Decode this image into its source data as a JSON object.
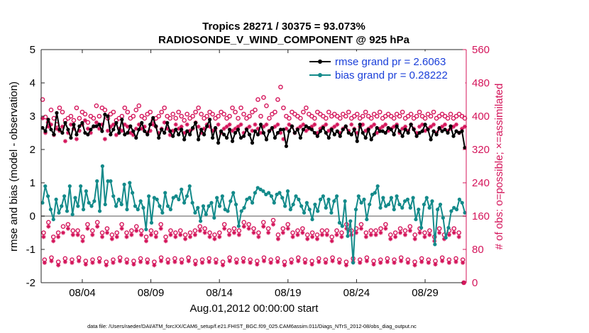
{
  "chart_data": {
    "type": "line",
    "title": "Tropics 28271 / 30375 = 93.073%",
    "subtitle": "RADIOSONDE_V_WIND_COMPONENT @ 925 hPa",
    "xlabel": "Aug.01,2012 00:00:00 start",
    "ylabel_left": "rmse and bias (model - observation)",
    "ylabel_right": "# of obs: o=possible; ×=assimilated",
    "footer": "data file: /Users/raeder/DAI/ATM_forcXX/CAM6_setup/f.e21.FHIST_BGC.f09_025.CAM6assim.011/Diags_NTrS_2012-08/obs_diag_output.nc",
    "xlim": [
      1,
      32
    ],
    "ylim_left": [
      -2,
      5
    ],
    "ylim_right": [
      0,
      560
    ],
    "xtick_values": [
      4,
      9,
      14,
      19,
      24,
      29
    ],
    "xtick_labels": [
      "08/04",
      "08/09",
      "08/14",
      "08/19",
      "08/24",
      "08/29"
    ],
    "ytick_left": [
      "-2",
      "-1",
      "0",
      "1",
      "2",
      "3",
      "4",
      "5"
    ],
    "ytick_right": [
      "0",
      "80",
      "160",
      "240",
      "320",
      "400",
      "480",
      "560"
    ],
    "legend": [
      {
        "label": "rmse grand pr = 2.6063",
        "color": "#000000"
      },
      {
        "label": "bias grand pr = 0.28222",
        "color": "#138a8a"
      }
    ],
    "colors": {
      "rmse": "#000000",
      "bias": "#138a8a",
      "obs": "#d4145a",
      "legend_text": "#1a3fd9",
      "zero": "#aaaaaa"
    },
    "rmse": [
      2.65,
      2.55,
      2.9,
      2.6,
      2.45,
      3.1,
      2.6,
      2.5,
      2.8,
      2.6,
      2.35,
      2.75,
      2.45,
      2.7,
      2.8,
      2.5,
      2.45,
      2.6,
      2.7,
      2.7,
      2.75,
      2.55,
      3.05,
      3.0,
      2.45,
      2.6,
      2.8,
      2.5,
      2.9,
      2.45,
      2.5,
      2.7,
      2.55,
      2.35,
      2.6,
      2.8,
      2.55,
      2.45,
      2.75,
      2.95,
      2.7,
      2.35,
      2.6,
      2.5,
      2.8,
      2.55,
      2.4,
      2.6,
      2.45,
      2.6,
      2.3,
      2.55,
      2.45,
      2.65,
      2.8,
      2.3,
      2.6,
      2.45,
      2.7,
      2.9,
      2.35,
      2.65,
      2.2,
      2.55,
      2.45,
      2.35,
      2.6,
      2.25,
      2.5,
      2.6,
      2.35,
      2.4,
      2.6,
      2.45,
      2.2,
      2.55,
      2.45,
      2.75,
      2.5,
      2.3,
      2.55,
      2.65,
      2.35,
      2.5,
      2.6,
      2.6,
      2.1,
      2.55,
      2.7,
      2.5,
      2.6,
      2.35,
      2.6,
      2.7,
      2.65,
      2.6,
      2.5,
      2.4,
      2.55,
      2.65,
      2.5,
      2.35,
      2.6,
      2.45,
      2.55,
      2.4,
      2.6,
      2.7,
      2.5,
      2.45,
      2.6,
      2.25,
      2.75,
      2.5,
      2.35,
      2.6,
      2.3,
      2.45,
      2.65,
      2.55,
      2.55,
      2.5,
      2.65,
      2.6,
      2.45,
      2.7,
      2.55,
      2.4,
      2.6,
      2.5,
      2.75,
      2.6,
      2.4,
      2.5,
      2.55,
      2.75,
      2.6,
      2.3,
      2.55,
      2.45,
      2.65,
      2.55,
      2.6,
      2.5,
      2.7,
      2.4,
      2.55,
      2.5,
      2.55,
      2.05
    ],
    "bias": [
      0.4,
      0.9,
      0.6,
      0.2,
      -0.1,
      0.5,
      0.1,
      0.3,
      0.6,
      0.15,
      0.9,
      0.05,
      0.55,
      0.3,
      0.9,
      0.2,
      0.75,
      0.4,
      0.3,
      0.45,
      1.05,
      0.15,
      1.5,
      0.35,
      1.05,
      1.05,
      0.6,
      0.3,
      0.5,
      0.35,
      0.95,
      0.2,
      1.0,
      0.7,
      0.3,
      0.2,
      0.45,
      0.25,
      -0.4,
      0.6,
      -0.2,
      0.55,
      0.5,
      0.3,
      0.1,
      0.7,
      0.3,
      0.2,
      0.55,
      0.6,
      0.5,
      0.8,
      0.4,
      0.6,
      0.9,
      0.4,
      0.1,
      0.25,
      -0.15,
      0.3,
      0.05,
      0.3,
      0.4,
      -0.05,
      0.55,
      0.3,
      0.6,
      0.2,
      0.15,
      0.45,
      0.7,
      0.35,
      -0.3,
      0.15,
      0.25,
      0.5,
      0.55,
      0.4,
      0.7,
      0.85,
      0.8,
      0.75,
      0.65,
      0.7,
      0.6,
      0.4,
      0.65,
      0.7,
      0.55,
      0.3,
      0.75,
      0.2,
      0.35,
      0.6,
      0.5,
      0.3,
      0.1,
      0.4,
      0.2,
      -0.1,
      0.35,
      0.15,
      0.5,
      0.6,
      0.25,
      0.5,
      0.1,
      0.45,
      0.6,
      -0.2,
      -0.3,
      0.45,
      -0.6,
      -0.15,
      -1.4,
      0.2,
      0.6,
      0.4,
      0.5,
      -0.1,
      0.35,
      0.65,
      0.7,
      0.9,
      0.25,
      0.55,
      0.3,
      0.35,
      0.55,
      0.2,
      0.6,
      0.35,
      0.25,
      0.45,
      0.5,
      0.25,
      0.55,
      -0.1,
      0.2,
      -0.35,
      0.35,
      0.55,
      0.25,
      0.45,
      -0.85,
      0.2,
      0.35,
      -0.05,
      -0.65,
      -0.35,
      0.15,
      0.25,
      0.2,
      0.5,
      0.4,
      0.1
    ],
    "obs_possible_top": [
      440,
      398,
      385,
      415,
      395,
      380,
      420,
      410,
      390,
      395,
      400,
      390,
      420,
      395,
      410,
      405,
      385,
      400,
      395,
      425,
      400,
      420,
      415,
      395,
      405,
      410,
      390,
      395,
      400,
      420,
      410,
      395,
      400,
      415,
      425,
      400,
      395,
      405,
      410,
      390,
      395,
      400,
      410,
      420,
      400,
      395,
      405,
      395,
      410,
      400,
      390,
      405,
      395,
      400,
      410,
      420,
      405,
      395,
      400,
      410,
      405,
      395,
      400,
      410,
      405,
      395,
      400,
      420,
      410,
      395,
      420,
      405,
      395,
      400,
      410,
      415,
      440,
      400,
      445,
      425,
      395,
      405,
      410,
      440,
      470,
      420,
      400,
      395,
      410,
      405,
      400,
      395,
      410,
      420,
      405,
      400,
      395,
      410,
      405,
      400,
      395,
      410,
      400,
      405,
      400,
      395,
      405,
      400,
      410,
      395,
      400,
      405,
      395,
      400,
      410,
      400,
      395,
      405,
      400,
      410,
      395,
      400,
      405,
      400,
      395,
      405,
      400,
      410,
      395,
      400,
      405,
      395,
      400,
      410,
      400,
      395,
      405,
      400,
      410,
      395,
      400,
      405,
      400,
      395,
      405,
      395,
      400,
      405,
      400,
      395
    ],
    "obs_assimilated_top": [
      395,
      360,
      375,
      380,
      355,
      370,
      365,
      375,
      340,
      360,
      380,
      370,
      345,
      365,
      380,
      390,
      370,
      360,
      375,
      385,
      370,
      380,
      345,
      365,
      375,
      380,
      355,
      370,
      365,
      380,
      375,
      360,
      355,
      370,
      380,
      370,
      375,
      360,
      365,
      380,
      375,
      360,
      370,
      385,
      370,
      355,
      365,
      380,
      370,
      375,
      360,
      380,
      365,
      370,
      385,
      375,
      360,
      370,
      380,
      375,
      365,
      370,
      380,
      360,
      370,
      375,
      380,
      365,
      370,
      375,
      380,
      360,
      370,
      375,
      365,
      380,
      370,
      360,
      375,
      380,
      365,
      370,
      375,
      380,
      360,
      345,
      370,
      380,
      375,
      360,
      370,
      375,
      380,
      365,
      370,
      375,
      380,
      360,
      370,
      375,
      380,
      365,
      370,
      375,
      380,
      360,
      370,
      375,
      365,
      380,
      370,
      360,
      375,
      380,
      365,
      370,
      375,
      380,
      360,
      370,
      375,
      380,
      365,
      370,
      375,
      380,
      360,
      370,
      375,
      365,
      380,
      370,
      360,
      375,
      380,
      365,
      370,
      375,
      380,
      360,
      370,
      375,
      380,
      365,
      370,
      375,
      380,
      360,
      370,
      375
    ],
    "obs_possible_low": [
      120,
      145,
      110,
      120,
      135,
      140,
      125,
      125,
      110,
      140,
      125,
      145,
      120,
      130,
      115,
      120,
      140,
      120,
      125,
      135,
      125,
      110,
      125,
      120,
      140,
      110,
      125,
      120,
      125,
      115,
      120,
      125,
      135,
      130,
      120,
      115,
      120,
      140,
      125,
      130,
      125,
      145,
      140,
      130,
      120,
      145,
      130,
      150,
      115,
      130,
      140,
      120,
      125,
      130,
      115,
      120,
      115,
      125,
      125,
      110,
      125,
      120,
      140,
      125,
      130,
      140,
      120,
      125,
      125,
      130,
      140,
      115,
      120,
      130,
      125,
      135,
      115,
      130,
      120,
      125,
      110,
      130,
      115,
      125,
      130,
      120,
      0
    ],
    "obs_assimilated_low": [
      110,
      135,
      100,
      110,
      120,
      130,
      115,
      115,
      100,
      130,
      115,
      135,
      110,
      120,
      105,
      110,
      130,
      110,
      115,
      125,
      115,
      100,
      115,
      110,
      130,
      100,
      115,
      110,
      115,
      105,
      110,
      115,
      125,
      120,
      110,
      105,
      110,
      130,
      115,
      120,
      115,
      135,
      130,
      120,
      110,
      135,
      120,
      140,
      105,
      120,
      130,
      110,
      115,
      120,
      105,
      110,
      105,
      115,
      115,
      100,
      115,
      110,
      130,
      115,
      120,
      130,
      110,
      115,
      115,
      120,
      130,
      105,
      110,
      120,
      115,
      125,
      105,
      120,
      110,
      115,
      100,
      120,
      105,
      115,
      120,
      110,
      0
    ],
    "obs_possible_bottom": [
      55,
      60,
      50,
      58,
      55,
      60,
      52,
      55,
      58,
      50,
      55,
      60,
      55,
      52,
      58,
      55,
      50,
      60,
      55,
      58,
      55,
      60,
      52,
      55,
      58,
      55,
      50,
      60,
      55,
      58,
      55,
      52,
      60,
      55,
      58,
      50,
      55,
      60,
      55,
      52,
      58,
      55,
      60,
      55,
      50,
      58,
      55,
      60,
      52,
      55,
      58,
      55,
      60,
      55,
      50,
      58,
      55,
      52,
      60,
      55,
      58,
      55
    ],
    "obs_assimilated_bottom": [
      48,
      52,
      42,
      50,
      48,
      52,
      44,
      48,
      50,
      42,
      48,
      52,
      48,
      44,
      50,
      48,
      42,
      52,
      48,
      50,
      48,
      52,
      44,
      48,
      50,
      48,
      42,
      52,
      48,
      50,
      48,
      44,
      52,
      48,
      50,
      42,
      48,
      52,
      48,
      44,
      50,
      48,
      52,
      48,
      42,
      50,
      48,
      52,
      44,
      48,
      50,
      48,
      52,
      48,
      42,
      50,
      48,
      44,
      52,
      48,
      50,
      48
    ]
  }
}
